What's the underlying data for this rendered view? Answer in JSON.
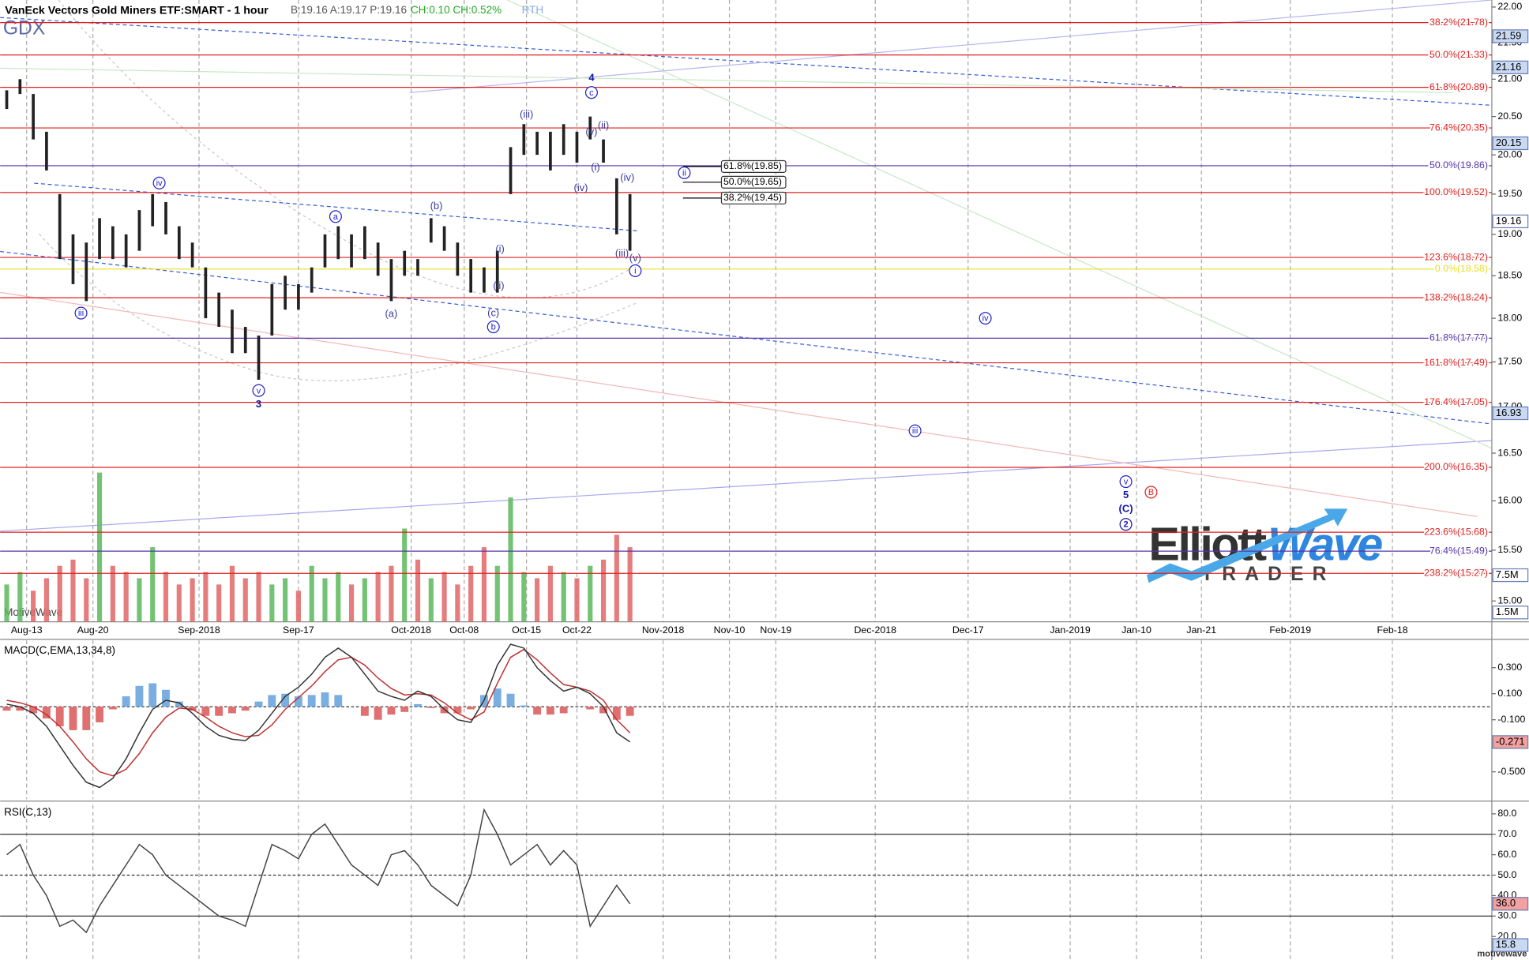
{
  "header": {
    "title": "VanEck Vectors Gold Miners ETF:SMART - 1 hour",
    "quote": "B:19.16 A:19.17 P:19.16",
    "change": "CH:0.10 CH:0.52%",
    "session": "RTH",
    "symbol": "GDX"
  },
  "chart_data": [
    {
      "type": "ohlc",
      "log_scale": true,
      "color": "#222222",
      "grid": true,
      "x": [
        -1.5,
        -0.5,
        0.5,
        1.5,
        2.5,
        3.5,
        4.5,
        5.5,
        6.5,
        7.5,
        8.5,
        9.5,
        10.5,
        11.5,
        12.5,
        13.5,
        14.5,
        15.5,
        16.5,
        17.5,
        18.5,
        19.5,
        20.5,
        21.5,
        22.5,
        23.5,
        24.5,
        25.5,
        26.5,
        27.5,
        28.5,
        29.5,
        30.5,
        31.5,
        32.5,
        33.5,
        34.5,
        35.5,
        36.5,
        37.5,
        38.5,
        39.5,
        40.5,
        41.5,
        42.5,
        43.5,
        44.5,
        45.5
      ],
      "high": [
        20.85,
        21.0,
        20.8,
        20.3,
        19.5,
        19.0,
        18.9,
        19.2,
        19.1,
        19.0,
        19.3,
        19.5,
        19.4,
        19.1,
        18.9,
        18.6,
        18.3,
        18.1,
        17.9,
        17.8,
        18.4,
        18.5,
        18.4,
        18.6,
        19.0,
        19.1,
        19.0,
        19.1,
        18.9,
        18.7,
        18.8,
        18.7,
        19.2,
        19.1,
        18.9,
        18.7,
        18.6,
        18.8,
        20.1,
        20.4,
        20.3,
        20.3,
        20.4,
        20.3,
        20.5,
        20.2,
        19.7,
        19.5
      ],
      "low": [
        20.6,
        20.8,
        20.2,
        19.8,
        18.7,
        18.4,
        18.2,
        18.7,
        18.7,
        18.6,
        18.8,
        19.1,
        19.0,
        18.7,
        18.6,
        18.0,
        17.9,
        17.6,
        17.6,
        17.3,
        17.8,
        18.1,
        18.1,
        18.3,
        18.6,
        18.7,
        18.6,
        18.7,
        18.5,
        18.2,
        18.5,
        18.5,
        18.9,
        18.8,
        18.5,
        18.3,
        18.3,
        18.3,
        19.5,
        20.0,
        20.0,
        19.8,
        20.0,
        19.9,
        20.2,
        19.9,
        19.0,
        18.8
      ],
      "volume": [
        6,
        8,
        5,
        7,
        9,
        10,
        7,
        24,
        9,
        8,
        7,
        12,
        8,
        6,
        7,
        8,
        6,
        9,
        7,
        8,
        6,
        7,
        5,
        9,
        7,
        8,
        6,
        7,
        8,
        9,
        15,
        10,
        7,
        8,
        6,
        9,
        12,
        9,
        20,
        8,
        7,
        9,
        8,
        7,
        9,
        10,
        14,
        12
      ],
      "volume_ylim": [
        0,
        100
      ],
      "volume_up_color": "#5cb85c",
      "volume_down_color": "#e06666",
      "volume_markers": [
        {
          "value": 7.5,
          "label": "7.5M"
        },
        {
          "value": 1.5,
          "label": "1.5M"
        }
      ],
      "xlim": [
        -2,
        110.5
      ],
      "ylim": [
        14.8,
        22.1
      ],
      "xticks": [
        {
          "value": 0,
          "label": "Aug-13"
        },
        {
          "value": 5,
          "label": "Aug-20"
        },
        {
          "value": 13,
          "label": "Sep-2018"
        },
        {
          "value": 20.5,
          "label": "Sep-17"
        },
        {
          "value": 29,
          "label": "Oct-2018"
        },
        {
          "value": 33,
          "label": "Oct-08"
        },
        {
          "value": 37.7,
          "label": "Oct-15"
        },
        {
          "value": 41.5,
          "label": "Oct-22"
        },
        {
          "value": 48,
          "label": "Nov-2018"
        },
        {
          "value": 53,
          "label": "Nov-10"
        },
        {
          "value": 56.5,
          "label": "Nov-19"
        },
        {
          "value": 64,
          "label": "Dec-2018"
        },
        {
          "value": 71,
          "label": "Dec-17"
        },
        {
          "value": 78.7,
          "label": "Jan-2019"
        },
        {
          "value": 83.7,
          "label": "Jan-10"
        },
        {
          "value": 88.6,
          "label": "Jan-21"
        },
        {
          "value": 95.3,
          "label": "Feb-2019"
        },
        {
          "value": 103,
          "label": "Feb-18"
        }
      ],
      "yticks": [
        {
          "value": 15,
          "label": "15.00"
        },
        {
          "value": 15.5,
          "label": "15.50"
        },
        {
          "value": 16,
          "label": "16.00"
        },
        {
          "value": 16.5,
          "label": "16.50"
        },
        {
          "value": 17,
          "label": "17.00"
        },
        {
          "value": 17.5,
          "label": "17.50"
        },
        {
          "value": 18,
          "label": "18.00"
        },
        {
          "value": 18.5,
          "label": "18.50"
        },
        {
          "value": 19,
          "label": "19.00"
        },
        {
          "value": 19.5,
          "label": "19.50"
        },
        {
          "value": 20,
          "label": "20.00"
        },
        {
          "value": 20.5,
          "label": "20.50"
        },
        {
          "value": 21,
          "label": "21.00"
        },
        {
          "value": 21.5,
          "label": "21.50"
        },
        {
          "value": 22,
          "label": "22.00"
        }
      ],
      "fib_levels": [
        {
          "value": 21.78,
          "label": "38.2%(21.78)",
          "color": "#e02020"
        },
        {
          "value": 21.33,
          "label": "50.0%(21.33)",
          "color": "#e02020"
        },
        {
          "value": 20.89,
          "label": "61.8%(20.89)",
          "color": "#e02020"
        },
        {
          "value": 20.35,
          "label": "76.4%(20.35)",
          "color": "#e02020"
        },
        {
          "value": 19.86,
          "label": "50.0%(19.86)",
          "color": "#5533aa"
        },
        {
          "value": 19.52,
          "label": "100.0%(19.52)",
          "color": "#e02020"
        },
        {
          "value": 18.72,
          "label": "123.6%(18.72)",
          "color": "#e02020"
        },
        {
          "value": 18.58,
          "label": "0.0%(18.58)",
          "color": "#e8e020"
        },
        {
          "value": 18.24,
          "label": "138.2%(18.24)",
          "color": "#e02020"
        },
        {
          "value": 17.77,
          "label": "61.8%(17.77)",
          "color": "#5533aa"
        },
        {
          "value": 17.49,
          "label": "161.8%(17.49)",
          "color": "#e02020"
        },
        {
          "value": 17.05,
          "label": "176.4%(17.05)",
          "color": "#e02020"
        },
        {
          "value": 16.35,
          "label": "200.0%(16.35)",
          "color": "#e02020"
        },
        {
          "value": 15.68,
          "label": "223.6%(15.68)",
          "color": "#e02020"
        },
        {
          "value": 15.49,
          "label": "76.4%(15.49)",
          "color": "#5533aa"
        },
        {
          "value": 15.27,
          "label": "238.2%(15.27)",
          "color": "#e02020"
        }
      ],
      "fib_box": {
        "x": [
          49.5,
          52.4
        ],
        "levels": [
          {
            "value": 19.85,
            "label": "61.8%(19.85)"
          },
          {
            "value": 19.65,
            "label": "50.0%(19.65)"
          },
          {
            "value": 19.45,
            "label": "38.2%(19.45)"
          }
        ]
      },
      "price_markers": [
        {
          "value": 21.59,
          "label": "21.59",
          "color": "#c9d9f2"
        },
        {
          "value": 21.16,
          "label": "21.16",
          "color": "#c9d9f2"
        },
        {
          "value": 20.15,
          "label": "20.15",
          "color": "#c9d9f2"
        },
        {
          "value": 19.16,
          "label": "19.16",
          "color": "#ffffff"
        },
        {
          "value": 16.93,
          "label": "16.93",
          "color": "#c9d9f2"
        }
      ],
      "wave_labels": [
        {
          "text": "iii",
          "x": 4.1,
          "y": 18.06,
          "color": "#2222cc",
          "circled": true,
          "bold": false
        },
        {
          "text": "iv",
          "x": 10.0,
          "y": 19.64,
          "color": "#2222cc",
          "circled": true,
          "bold": false
        },
        {
          "text": "v",
          "x": 17.5,
          "y": 17.18,
          "color": "#2222cc",
          "circled": true,
          "bold": false
        },
        {
          "text": "3",
          "x": 17.5,
          "y": 17.03,
          "color": "#1515aa",
          "circled": false,
          "bold": true
        },
        {
          "text": "a",
          "x": 23.3,
          "y": 19.22,
          "color": "#2222cc",
          "circled": true,
          "bold": false
        },
        {
          "text": "(a)",
          "x": 27.5,
          "y": 18.05,
          "color": "#3a3aa0",
          "circled": false,
          "bold": false
        },
        {
          "text": "(b)",
          "x": 30.9,
          "y": 19.35,
          "color": "#3a3aa0",
          "circled": false,
          "bold": false
        },
        {
          "text": "(c)",
          "x": 35.2,
          "y": 18.06,
          "color": "#3a3aa0",
          "circled": false,
          "bold": false
        },
        {
          "text": "b",
          "x": 35.2,
          "y": 17.9,
          "color": "#2222cc",
          "circled": true,
          "bold": false
        },
        {
          "text": "(i)",
          "x": 35.7,
          "y": 18.82,
          "color": "#3a3aa0",
          "circled": false,
          "bold": false
        },
        {
          "text": "(ii)",
          "x": 35.6,
          "y": 18.38,
          "color": "#3a3aa0",
          "circled": false,
          "bold": false
        },
        {
          "text": "(iii)",
          "x": 37.7,
          "y": 20.53,
          "color": "#3a3aa0",
          "circled": false,
          "bold": false
        },
        {
          "text": "(iv)",
          "x": 41.8,
          "y": 19.58,
          "color": "#3a3aa0",
          "circled": false,
          "bold": false
        },
        {
          "text": "(i)",
          "x": 42.9,
          "y": 19.84,
          "color": "#3a3aa0",
          "circled": false,
          "bold": false
        },
        {
          "text": "(v)",
          "x": 42.6,
          "y": 20.3,
          "color": "#3a3aa0",
          "circled": false,
          "bold": false
        },
        {
          "text": "c",
          "x": 42.6,
          "y": 20.82,
          "color": "#2222cc",
          "circled": true,
          "bold": false
        },
        {
          "text": "4",
          "x": 42.6,
          "y": 21.02,
          "color": "#1515aa",
          "circled": false,
          "bold": true
        },
        {
          "text": "(ii)",
          "x": 43.5,
          "y": 20.38,
          "color": "#3a3aa0",
          "circled": false,
          "bold": false
        },
        {
          "text": "(iv)",
          "x": 45.3,
          "y": 19.71,
          "color": "#3a3aa0",
          "circled": false,
          "bold": false
        },
        {
          "text": "(iii)",
          "x": 44.9,
          "y": 18.77,
          "color": "#3a3aa0",
          "circled": false,
          "bold": false
        },
        {
          "text": "(v)",
          "x": 45.9,
          "y": 18.71,
          "color": "#3a3aa0",
          "circled": false,
          "bold": false
        },
        {
          "text": "i",
          "x": 45.9,
          "y": 18.56,
          "color": "#2222cc",
          "circled": true,
          "bold": false
        },
        {
          "text": "ii",
          "x": 49.6,
          "y": 19.77,
          "color": "#2222cc",
          "circled": true,
          "bold": false
        },
        {
          "text": "iii",
          "x": 67.0,
          "y": 16.74,
          "color": "#2222cc",
          "circled": true,
          "bold": false
        },
        {
          "text": "iv",
          "x": 72.3,
          "y": 18.0,
          "color": "#2222cc",
          "circled": true,
          "bold": false
        },
        {
          "text": "v",
          "x": 82.9,
          "y": 16.2,
          "color": "#2222cc",
          "circled": true,
          "bold": false
        },
        {
          "text": "5",
          "x": 82.9,
          "y": 16.06,
          "color": "#1515aa",
          "circled": false,
          "bold": true
        },
        {
          "text": "(C)",
          "x": 82.9,
          "y": 15.92,
          "color": "#1515aa",
          "circled": false,
          "bold": true
        },
        {
          "text": "2",
          "x": 82.9,
          "y": 15.76,
          "color": "#1515aa",
          "circled": true,
          "bold": true
        },
        {
          "text": "B",
          "x": 84.8,
          "y": 16.09,
          "color": "#e02020",
          "circled": true,
          "bold": false
        }
      ]
    },
    {
      "type": "macd",
      "title": "MACD(C,EMA,13,34,8)",
      "x": [
        -1.5,
        -0.5,
        0.5,
        1.5,
        2.5,
        3.5,
        4.5,
        5.5,
        6.5,
        7.5,
        8.5,
        9.5,
        10.5,
        11.5,
        12.5,
        13.5,
        14.5,
        15.5,
        16.5,
        17.5,
        18.5,
        19.5,
        20.5,
        21.5,
        22.5,
        23.5,
        24.5,
        25.5,
        26.5,
        27.5,
        28.5,
        29.5,
        30.5,
        31.5,
        32.5,
        33.5,
        34.5,
        35.5,
        36.5,
        37.5,
        38.5,
        39.5,
        40.5,
        41.5,
        42.5,
        43.5,
        44.5,
        45.5
      ],
      "macd": [
        0.02,
        0.0,
        -0.05,
        -0.15,
        -0.3,
        -0.45,
        -0.58,
        -0.62,
        -0.55,
        -0.4,
        -0.2,
        -0.02,
        0.05,
        0.03,
        -0.05,
        -0.15,
        -0.22,
        -0.25,
        -0.26,
        -0.18,
        -0.05,
        0.08,
        0.15,
        0.25,
        0.38,
        0.45,
        0.38,
        0.25,
        0.12,
        0.08,
        0.05,
        0.12,
        0.08,
        -0.02,
        -0.1,
        -0.12,
        0.05,
        0.32,
        0.48,
        0.45,
        0.3,
        0.2,
        0.12,
        0.15,
        0.1,
        0.0,
        -0.2,
        -0.27
      ],
      "signal": [
        0.05,
        0.03,
        0.0,
        -0.06,
        -0.15,
        -0.27,
        -0.4,
        -0.5,
        -0.53,
        -0.48,
        -0.36,
        -0.2,
        -0.08,
        -0.01,
        -0.02,
        -0.08,
        -0.15,
        -0.2,
        -0.23,
        -0.22,
        -0.14,
        -0.02,
        0.07,
        0.16,
        0.27,
        0.36,
        0.38,
        0.32,
        0.22,
        0.14,
        0.09,
        0.1,
        0.09,
        0.03,
        -0.05,
        -0.1,
        -0.04,
        0.18,
        0.38,
        0.44,
        0.36,
        0.26,
        0.17,
        0.15,
        0.12,
        0.05,
        -0.1,
        -0.2
      ],
      "histogram": [
        -0.03,
        -0.03,
        -0.05,
        -0.09,
        -0.15,
        -0.18,
        -0.18,
        -0.12,
        -0.02,
        0.08,
        0.16,
        0.18,
        0.13,
        0.04,
        -0.03,
        -0.07,
        -0.07,
        -0.05,
        -0.03,
        0.04,
        0.09,
        0.1,
        0.08,
        0.09,
        0.11,
        0.09,
        0.0,
        -0.07,
        -0.1,
        -0.06,
        -0.04,
        0.02,
        -0.01,
        -0.05,
        -0.05,
        -0.02,
        0.09,
        0.14,
        0.1,
        0.01,
        -0.06,
        -0.06,
        -0.05,
        0.0,
        -0.02,
        -0.05,
        -0.1,
        -0.07
      ],
      "macd_color": "#333333",
      "signal_color": "#c03030",
      "hist_up_color": "#7aaee0",
      "hist_down_color": "#e07070",
      "ylim": [
        -0.71,
        0.51
      ],
      "yticks": [
        {
          "value": 0.3,
          "label": "0.300"
        },
        {
          "value": 0.1,
          "label": "0.100"
        },
        {
          "value": -0.1,
          "label": "-0.100"
        },
        {
          "value": -0.5,
          "label": "-0.500"
        }
      ],
      "zero_line": true,
      "value_markers": [
        {
          "value": -0.271,
          "label": "-0.271",
          "color": "#f2a0a0"
        }
      ]
    },
    {
      "type": "rsi",
      "title": "RSI(C,13)",
      "x": [
        -1.5,
        -0.5,
        0.5,
        1.5,
        2.5,
        3.5,
        4.5,
        5.5,
        6.5,
        7.5,
        8.5,
        9.5,
        10.5,
        11.5,
        12.5,
        13.5,
        14.5,
        15.5,
        16.5,
        17.5,
        18.5,
        19.5,
        20.5,
        21.5,
        22.5,
        23.5,
        24.5,
        25.5,
        26.5,
        27.5,
        28.5,
        29.5,
        30.5,
        31.5,
        32.5,
        33.5,
        34.5,
        35.5,
        36.5,
        37.5,
        38.5,
        39.5,
        40.5,
        41.5,
        42.5,
        43.5,
        44.5,
        45.5
      ],
      "values": [
        60,
        65,
        50,
        40,
        25,
        28,
        22,
        35,
        45,
        55,
        65,
        60,
        50,
        45,
        40,
        35,
        30,
        28,
        25,
        45,
        65,
        62,
        58,
        70,
        75,
        65,
        55,
        50,
        45,
        60,
        62,
        55,
        45,
        40,
        35,
        50,
        82,
        70,
        55,
        60,
        65,
        55,
        62,
        55,
        25,
        35,
        45,
        36
      ],
      "color": "#444444",
      "ylim": [
        8.5,
        84.3
      ],
      "yticks": [
        {
          "value": 20,
          "label": "20.0"
        },
        {
          "value": 30,
          "label": "30.0"
        },
        {
          "value": 40,
          "label": "40.0"
        },
        {
          "value": 50,
          "label": "50.0"
        },
        {
          "value": 60,
          "label": "60.0"
        },
        {
          "value": 70,
          "label": "70.0"
        },
        {
          "value": 80,
          "label": "80.0"
        }
      ],
      "levels": [
        {
          "value": 70,
          "dashed": false
        },
        {
          "value": 50,
          "dashed": true
        },
        {
          "value": 30,
          "dashed": false
        }
      ],
      "value_markers": [
        {
          "value": 36.0,
          "label": "36.0",
          "color": "#f2a0a0"
        },
        {
          "value": 15.8,
          "label": "15.8",
          "color": "#c9d9f2"
        }
      ]
    }
  ],
  "footer": {
    "watermark": "MotiveWave",
    "site": "motivewave"
  },
  "logo": {
    "word1": "Elliott",
    "word2": "Wave",
    "word3": "TRADER"
  }
}
